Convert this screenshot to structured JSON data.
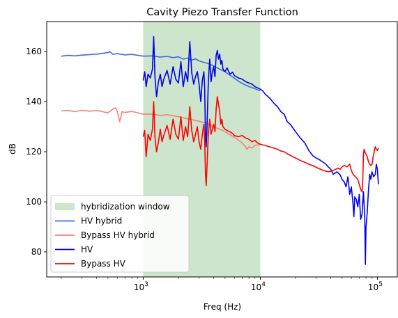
{
  "chart_data": {
    "type": "line",
    "title": "Cavity Piezo Transfer Function",
    "xlabel": "Freq (Hz)",
    "ylabel": "dB",
    "xscale": "log",
    "xlim": [
      150,
      150000
    ],
    "ylim": [
      70,
      172
    ],
    "x_ticks": [
      {
        "value": 1000,
        "base": "10",
        "exp": "3"
      },
      {
        "value": 10000,
        "base": "10",
        "exp": "4"
      },
      {
        "value": 100000,
        "base": "10",
        "exp": "5"
      }
    ],
    "y_ticks": [
      80,
      100,
      120,
      140,
      160
    ],
    "grid": false,
    "legend_position": "lower-left",
    "shaded_region": {
      "name": "hybridization window",
      "x_start": 1000,
      "x_end": 10000,
      "color": "#cde5cd"
    },
    "series": [
      {
        "name": "HV hybrid",
        "color": "#4169e1",
        "points": [
          [
            200,
            158.2
          ],
          [
            230,
            158.5
          ],
          [
            260,
            158.3
          ],
          [
            300,
            158.6
          ],
          [
            350,
            158.8
          ],
          [
            400,
            159.0
          ],
          [
            450,
            159.3
          ],
          [
            500,
            159.6
          ],
          [
            520,
            160.0
          ],
          [
            550,
            158.9
          ],
          [
            600,
            159.2
          ],
          [
            700,
            158.7
          ],
          [
            800,
            158.9
          ],
          [
            900,
            158.5
          ],
          [
            1000,
            158.2
          ],
          [
            1200,
            158.3
          ],
          [
            1400,
            157.8
          ],
          [
            1600,
            158.1
          ],
          [
            1800,
            157.6
          ],
          [
            2000,
            157.9
          ],
          [
            2200,
            157.0
          ],
          [
            2400,
            157.4
          ],
          [
            2600,
            156.6
          ],
          [
            2800,
            157.1
          ],
          [
            3000,
            156.3
          ],
          [
            3300,
            155.7
          ],
          [
            3600,
            155.2
          ],
          [
            4000,
            154.3
          ],
          [
            4500,
            153.0
          ],
          [
            5000,
            152.0
          ],
          [
            5500,
            150.6
          ],
          [
            6000,
            149.4
          ],
          [
            6500,
            148.2
          ],
          [
            7000,
            147.3
          ],
          [
            8000,
            146.0
          ],
          [
            9000,
            145.2
          ],
          [
            10000,
            144.3
          ]
        ]
      },
      {
        "name": "Bypass HV hybrid",
        "color": "#fa8072",
        "points": [
          [
            200,
            136.3
          ],
          [
            230,
            136.5
          ],
          [
            260,
            136.0
          ],
          [
            300,
            136.6
          ],
          [
            350,
            136.2
          ],
          [
            400,
            136.5
          ],
          [
            450,
            136.0
          ],
          [
            500,
            135.5
          ],
          [
            550,
            137.0
          ],
          [
            580,
            137.5
          ],
          [
            600,
            136.2
          ],
          [
            630,
            132.0
          ],
          [
            660,
            136.0
          ],
          [
            700,
            135.7
          ],
          [
            800,
            136.1
          ],
          [
            900,
            135.6
          ],
          [
            1000,
            135.0
          ],
          [
            1200,
            135.0
          ],
          [
            1400,
            134.5
          ],
          [
            1600,
            134.8
          ],
          [
            1800,
            134.4
          ],
          [
            2000,
            134.0
          ],
          [
            2200,
            133.6
          ],
          [
            2500,
            133.0
          ],
          [
            2800,
            132.5
          ],
          [
            3100,
            132.0
          ],
          [
            3400,
            131.5
          ],
          [
            3700,
            130.7
          ],
          [
            4000,
            130.0
          ],
          [
            4500,
            129.0
          ],
          [
            5000,
            128.0
          ],
          [
            5500,
            126.8
          ],
          [
            6000,
            125.8
          ],
          [
            6500,
            124.6
          ],
          [
            7000,
            123.5
          ],
          [
            7500,
            122.0
          ],
          [
            7700,
            121.0
          ],
          [
            8000,
            122.0
          ],
          [
            8500,
            121.5
          ],
          [
            9000,
            122.5
          ],
          [
            10000,
            123.0
          ]
        ]
      },
      {
        "name": "HV",
        "color": "#0000ee",
        "points": [
          [
            1000,
            148.5
          ],
          [
            1030,
            152.0
          ],
          [
            1060,
            146.0
          ],
          [
            1100,
            151.0
          ],
          [
            1150,
            149.5
          ],
          [
            1200,
            153.0
          ],
          [
            1230,
            166.0
          ],
          [
            1260,
            150.0
          ],
          [
            1300,
            142.0
          ],
          [
            1350,
            148.0
          ],
          [
            1400,
            151.0
          ],
          [
            1450,
            146.0
          ],
          [
            1500,
            149.0
          ],
          [
            1600,
            152.5
          ],
          [
            1700,
            147.0
          ],
          [
            1800,
            154.0
          ],
          [
            1900,
            149.0
          ],
          [
            2000,
            147.5
          ],
          [
            2100,
            156.0
          ],
          [
            2200,
            146.0
          ],
          [
            2300,
            152.0
          ],
          [
            2400,
            148.0
          ],
          [
            2500,
            164.0
          ],
          [
            2600,
            151.5
          ],
          [
            2700,
            147.0
          ],
          [
            2800,
            150.0
          ],
          [
            2900,
            152.0
          ],
          [
            3000,
            147.0
          ],
          [
            3100,
            140.0
          ],
          [
            3200,
            148.5
          ],
          [
            3300,
            152.0
          ],
          [
            3350,
            146.0
          ],
          [
            3400,
            128.0
          ],
          [
            3450,
            122.0
          ],
          [
            3500,
            128.0
          ],
          [
            3600,
            148.0
          ],
          [
            3700,
            157.0
          ],
          [
            3800,
            148.0
          ],
          [
            3900,
            152.0
          ],
          [
            4000,
            154.0
          ],
          [
            4100,
            150.0
          ],
          [
            4200,
            158.5
          ],
          [
            4300,
            160.5
          ],
          [
            4400,
            157.0
          ],
          [
            4500,
            159.0
          ],
          [
            4600,
            155.0
          ],
          [
            4700,
            156.5
          ],
          [
            4800,
            153.0
          ],
          [
            5000,
            152.0
          ],
          [
            5200,
            153.5
          ],
          [
            5500,
            151.0
          ],
          [
            5800,
            151.8
          ],
          [
            6000,
            150.5
          ],
          [
            6500,
            149.5
          ],
          [
            7000,
            149.0
          ],
          [
            7500,
            148.0
          ],
          [
            8000,
            147.5
          ],
          [
            8500,
            147.0
          ],
          [
            9000,
            146.0
          ],
          [
            9500,
            145.5
          ],
          [
            10000,
            145.0
          ],
          [
            10500,
            144.3
          ],
          [
            11000,
            143.0
          ],
          [
            12000,
            141.5
          ],
          [
            13000,
            139.5
          ],
          [
            14000,
            138.0
          ],
          [
            15000,
            136.0
          ],
          [
            16000,
            135.0
          ],
          [
            17000,
            132.0
          ],
          [
            18000,
            131.0
          ],
          [
            19000,
            129.5
          ],
          [
            20000,
            128.0
          ],
          [
            22000,
            125.5
          ],
          [
            24000,
            123.5
          ],
          [
            26000,
            120.5
          ],
          [
            28000,
            118.5
          ],
          [
            30000,
            117.5
          ],
          [
            32000,
            116.8
          ],
          [
            34000,
            116.0
          ],
          [
            36000,
            115.2
          ],
          [
            38000,
            114.0
          ],
          [
            40000,
            113.0
          ],
          [
            42000,
            111.0
          ],
          [
            45000,
            112.0
          ],
          [
            48000,
            110.8
          ],
          [
            50000,
            109.0
          ],
          [
            52000,
            108.0
          ],
          [
            54000,
            106.0
          ],
          [
            56000,
            110.0
          ],
          [
            58000,
            103.0
          ],
          [
            60000,
            106.0
          ],
          [
            62000,
            99.0
          ],
          [
            63000,
            94.0
          ],
          [
            64000,
            102.0
          ],
          [
            66000,
            101.0
          ],
          [
            68000,
            98.0
          ],
          [
            70000,
            103.0
          ],
          [
            72000,
            93.0
          ],
          [
            74000,
            95.0
          ],
          [
            76000,
            104.0
          ],
          [
            78000,
            94.0
          ],
          [
            79000,
            75.0
          ],
          [
            80000,
            90.0
          ],
          [
            82000,
            96.0
          ],
          [
            84000,
            105.0
          ],
          [
            86000,
            111.0
          ],
          [
            88000,
            109.0
          ],
          [
            90000,
            112.0
          ],
          [
            93000,
            110.0
          ],
          [
            96000,
            111.0
          ],
          [
            98000,
            115.0
          ],
          [
            100000,
            113.0
          ],
          [
            102000,
            107.0
          ]
        ]
      },
      {
        "name": "Bypass HV",
        "color": "#ff0000",
        "points": [
          [
            1000,
            126.0
          ],
          [
            1030,
            128.5
          ],
          [
            1060,
            118.0
          ],
          [
            1100,
            127.0
          ],
          [
            1150,
            124.5
          ],
          [
            1200,
            129.0
          ],
          [
            1230,
            140.0
          ],
          [
            1260,
            126.0
          ],
          [
            1300,
            120.0
          ],
          [
            1350,
            124.0
          ],
          [
            1400,
            129.0
          ],
          [
            1450,
            124.0
          ],
          [
            1500,
            126.5
          ],
          [
            1600,
            130.5
          ],
          [
            1700,
            125.0
          ],
          [
            1800,
            133.0
          ],
          [
            1900,
            127.0
          ],
          [
            2000,
            125.0
          ],
          [
            2100,
            134.0
          ],
          [
            2200,
            124.5
          ],
          [
            2300,
            130.0
          ],
          [
            2400,
            126.0
          ],
          [
            2500,
            138.0
          ],
          [
            2600,
            128.5
          ],
          [
            2700,
            124.0
          ],
          [
            2800,
            127.0
          ],
          [
            2900,
            130.0
          ],
          [
            3000,
            124.0
          ],
          [
            3100,
            121.0
          ],
          [
            3200,
            127.0
          ],
          [
            3300,
            131.0
          ],
          [
            3350,
            125.0
          ],
          [
            3400,
            112.0
          ],
          [
            3450,
            106.5
          ],
          [
            3500,
            113.0
          ],
          [
            3600,
            127.0
          ],
          [
            3700,
            133.0
          ],
          [
            3800,
            127.0
          ],
          [
            3900,
            129.0
          ],
          [
            4000,
            131.0
          ],
          [
            4100,
            128.0
          ],
          [
            4200,
            137.0
          ],
          [
            4300,
            142.0
          ],
          [
            4400,
            139.0
          ],
          [
            4500,
            136.0
          ],
          [
            4600,
            131.0
          ],
          [
            4700,
            133.0
          ],
          [
            4800,
            130.0
          ],
          [
            5000,
            129.0
          ],
          [
            5200,
            128.5
          ],
          [
            5500,
            128.0
          ],
          [
            5800,
            127.3
          ],
          [
            6000,
            126.5
          ],
          [
            6500,
            126.0
          ],
          [
            7000,
            126.5
          ],
          [
            7500,
            125.5
          ],
          [
            8000,
            125.0
          ],
          [
            8500,
            124.0
          ],
          [
            9000,
            124.5
          ],
          [
            9500,
            123.5
          ],
          [
            10000,
            123.0
          ],
          [
            11000,
            122.5
          ],
          [
            12000,
            122.0
          ],
          [
            13000,
            121.5
          ],
          [
            14000,
            121.0
          ],
          [
            15000,
            120.3
          ],
          [
            16000,
            120.0
          ],
          [
            17000,
            119.2
          ],
          [
            18000,
            118.6
          ],
          [
            19000,
            118.0
          ],
          [
            20000,
            117.5
          ],
          [
            22000,
            116.5
          ],
          [
            24000,
            115.8
          ],
          [
            26000,
            115.0
          ],
          [
            28000,
            114.5
          ],
          [
            30000,
            113.8
          ],
          [
            32000,
            113.2
          ],
          [
            34000,
            112.7
          ],
          [
            36000,
            112.3
          ],
          [
            38000,
            112.0
          ],
          [
            40000,
            112.2
          ],
          [
            42000,
            112.5
          ],
          [
            44000,
            113.0
          ],
          [
            46000,
            113.5
          ],
          [
            48000,
            113.0
          ],
          [
            50000,
            114.0
          ],
          [
            52000,
            114.5
          ],
          [
            55000,
            114.0
          ],
          [
            58000,
            115.0
          ],
          [
            60000,
            112.5
          ],
          [
            62000,
            111.0
          ],
          [
            65000,
            110.0
          ],
          [
            68000,
            109.0
          ],
          [
            70000,
            107.0
          ],
          [
            72000,
            105.0
          ],
          [
            74000,
            104.0
          ],
          [
            75000,
            108.0
          ],
          [
            76000,
            119.0
          ],
          [
            77000,
            121.0
          ],
          [
            78000,
            120.0
          ],
          [
            80000,
            119.0
          ],
          [
            82000,
            118.0
          ],
          [
            84000,
            116.0
          ],
          [
            86000,
            115.0
          ],
          [
            88000,
            114.5
          ],
          [
            90000,
            115.0
          ],
          [
            92000,
            118.0
          ],
          [
            94000,
            120.0
          ],
          [
            96000,
            122.0
          ],
          [
            98000,
            121.0
          ],
          [
            100000,
            120.5
          ],
          [
            102000,
            121.5
          ]
        ]
      }
    ]
  }
}
